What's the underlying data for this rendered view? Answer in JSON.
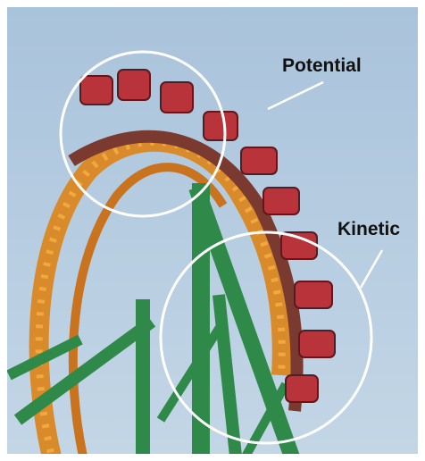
{
  "labels": {
    "potential": "Potential",
    "kinetic": "Kinetic"
  }
}
